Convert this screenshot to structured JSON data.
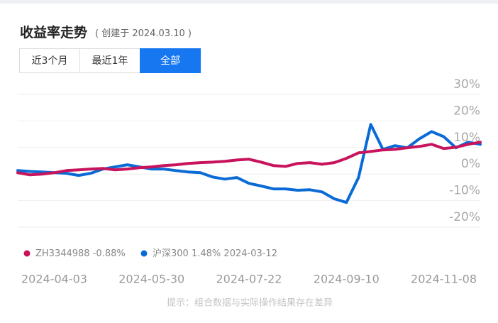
{
  "header": {
    "title": "收益率走势",
    "subtitle": "( 创建于 2024.03.10 )"
  },
  "tabs": [
    "近3个月",
    "最近1年",
    "全部"
  ],
  "active_tab": 2,
  "chart_data": {
    "type": "line",
    "categories": [
      null,
      null,
      null,
      "2024-04-03",
      null,
      null,
      null,
      null,
      null,
      null,
      null,
      "2024-05-30",
      null,
      null,
      null,
      null,
      null,
      null,
      null,
      "2024-07-22",
      null,
      null,
      null,
      null,
      null,
      null,
      null,
      "2024-09-10",
      null,
      null,
      null,
      null,
      null,
      null,
      null,
      "2024-11-08",
      null,
      null,
      null
    ],
    "series": [
      {
        "name": "沪深300",
        "legend_label": "1.48%",
        "color": "#0b6bd6",
        "values": [
          1.3,
          1,
          0.8,
          0.5,
          0.3,
          -0.5,
          0.3,
          1.9,
          2.7,
          3.5,
          2.7,
          1.9,
          1.9,
          1.3,
          0.8,
          0.5,
          -1.1,
          -1.9,
          -1.3,
          -3.5,
          -4.5,
          -5.6,
          -5.6,
          -6.1,
          -5.9,
          -6.7,
          -9.3,
          -10.7,
          -1.3,
          18.7,
          9.3,
          10.7,
          9.9,
          13.3,
          16,
          14.1,
          9.9,
          12,
          11.2
        ]
      },
      {
        "name": "ZH3344988",
        "legend_label": "-0.88%",
        "color": "#c8145c",
        "values": [
          0.5,
          -0.3,
          0,
          0.5,
          1.3,
          1.6,
          1.9,
          2.1,
          1.6,
          1.9,
          2.4,
          2.7,
          3.2,
          3.5,
          4.0,
          4.3,
          4.5,
          4.8,
          5.3,
          5.6,
          4.5,
          3.2,
          2.9,
          4.0,
          4.3,
          3.7,
          4.3,
          5.9,
          8.0,
          8.5,
          9.1,
          9.3,
          9.9,
          10.4,
          11.2,
          9.6,
          10.1,
          11.2,
          12.0
        ]
      }
    ],
    "legend_date": "2024-03-12",
    "ylim": [
      -20,
      30
    ],
    "yticks": [
      {
        "value": 30,
        "label": "30%"
      },
      {
        "value": 20,
        "label": "20%"
      },
      {
        "value": 10,
        "label": "10%"
      },
      {
        "value": 0,
        "label": "0%"
      },
      {
        "value": -10,
        "label": "-10%"
      },
      {
        "value": -20,
        "label": "-20%"
      }
    ],
    "grid": true
  },
  "footnote": "提示：组合数据与实际操作结果存在差异"
}
